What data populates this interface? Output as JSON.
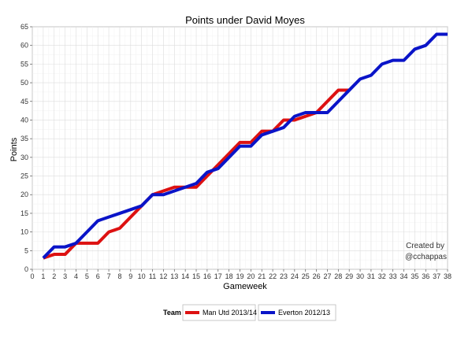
{
  "chart_data": {
    "type": "line",
    "title": "Points under David Moyes",
    "xlabel": "Gameweek",
    "ylabel": "Points",
    "xlim": [
      0,
      38
    ],
    "ylim": [
      0,
      65
    ],
    "x_ticks": [
      0,
      1,
      2,
      3,
      4,
      5,
      6,
      7,
      8,
      9,
      10,
      11,
      12,
      13,
      14,
      15,
      16,
      17,
      18,
      19,
      20,
      21,
      22,
      23,
      24,
      25,
      26,
      27,
      28,
      29,
      30,
      31,
      32,
      33,
      34,
      35,
      36,
      37,
      38
    ],
    "y_ticks": [
      0,
      5,
      10,
      15,
      20,
      25,
      30,
      35,
      40,
      45,
      50,
      55,
      60,
      65
    ],
    "grid": true,
    "legend": {
      "title": "Team",
      "position": "bottom"
    },
    "annotation": [
      "Created by",
      "@cchappas"
    ],
    "series": [
      {
        "name": "Man Utd 2013/14",
        "color": "#dd1111",
        "x": [
          1,
          2,
          3,
          4,
          5,
          6,
          7,
          8,
          9,
          10,
          11,
          12,
          13,
          14,
          15,
          16,
          17,
          18,
          19,
          20,
          21,
          22,
          23,
          24,
          25,
          26,
          27,
          28,
          29
        ],
        "y": [
          3,
          4,
          4,
          7,
          7,
          7,
          10,
          11,
          14,
          17,
          20,
          21,
          22,
          22,
          22,
          25,
          28,
          31,
          34,
          34,
          37,
          37,
          40,
          40,
          41,
          42,
          45,
          48,
          48
        ]
      },
      {
        "name": "Everton 2012/13",
        "color": "#0a14c8",
        "x": [
          1,
          2,
          3,
          4,
          5,
          6,
          7,
          8,
          9,
          10,
          11,
          12,
          13,
          14,
          15,
          16,
          17,
          18,
          19,
          20,
          21,
          22,
          23,
          24,
          25,
          26,
          27,
          28,
          29,
          30,
          31,
          32,
          33,
          34,
          35,
          36,
          37,
          38
        ],
        "y": [
          3,
          6,
          6,
          7,
          10,
          13,
          14,
          15,
          16,
          17,
          20,
          20,
          21,
          22,
          23,
          26,
          27,
          30,
          33,
          33,
          36,
          37,
          38,
          41,
          42,
          42,
          42,
          45,
          48,
          51,
          52,
          55,
          56,
          56,
          59,
          60,
          63,
          63
        ]
      }
    ]
  }
}
